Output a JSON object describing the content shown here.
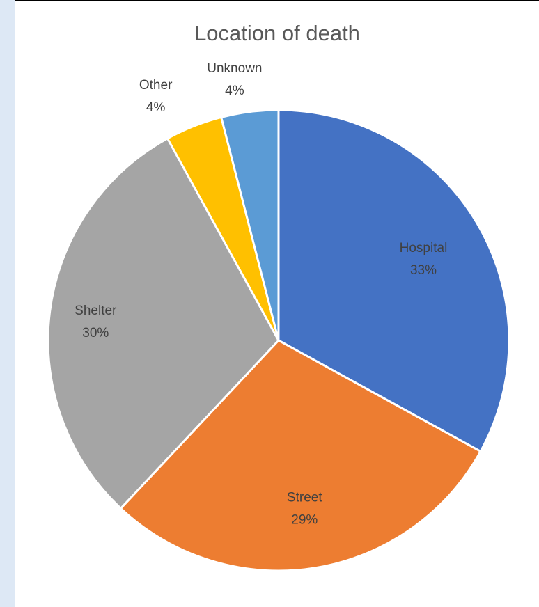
{
  "chart_data": {
    "type": "pie",
    "title": "Location of death",
    "slices": [
      {
        "name": "Hospital",
        "value": 33,
        "label": "33%",
        "color": "#4472c4"
      },
      {
        "name": "Street",
        "value": 29,
        "label": "29%",
        "color": "#ed7d31"
      },
      {
        "name": "Shelter",
        "value": 30,
        "label": "30%",
        "color": "#a5a5a5"
      },
      {
        "name": "Other",
        "value": 4,
        "label": "4%",
        "color": "#ffc000"
      },
      {
        "name": "Unknown",
        "value": 4,
        "label": "4%",
        "color": "#5b9bd5"
      }
    ],
    "start": "12 o'clock",
    "direction": "clockwise",
    "legend": "none",
    "data_labels": "category name and percentage"
  }
}
